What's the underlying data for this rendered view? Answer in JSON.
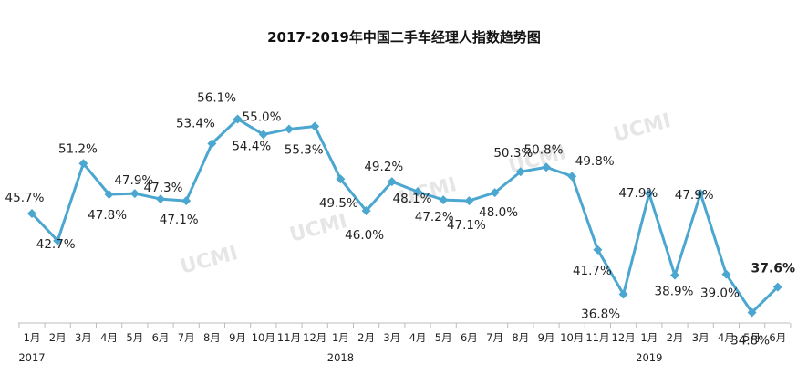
{
  "chart_data": {
    "type": "line",
    "title": "2017-2019年中国二手车经理人指数趋势图",
    "watermark": "UCMI",
    "line_color": "#4BA6D0",
    "categories": [
      "1月",
      "2月",
      "3月",
      "4月",
      "5月",
      "6月",
      "7月",
      "8月",
      "9月",
      "10月",
      "11月",
      "12月",
      "1月",
      "2月",
      "3月",
      "4月",
      "5月",
      "6月",
      "7月",
      "8月",
      "9月",
      "10月",
      "11月",
      "12月",
      "1月",
      "2月",
      "3月",
      "4月",
      "5月",
      "6月"
    ],
    "years": [
      {
        "label": "2017",
        "start_index": 0
      },
      {
        "label": "2018",
        "start_index": 12
      },
      {
        "label": "2019",
        "start_index": 24
      }
    ],
    "values": [
      45.7,
      42.7,
      51.2,
      47.8,
      47.9,
      47.3,
      47.1,
      53.4,
      56.1,
      54.4,
      55.0,
      55.3,
      49.5,
      46.0,
      49.2,
      48.1,
      47.2,
      47.1,
      48.0,
      50.3,
      50.8,
      49.8,
      41.7,
      36.8,
      47.9,
      38.9,
      47.9,
      39.0,
      34.8,
      37.6
    ],
    "labels": [
      "45.7%",
      "42.7%",
      "51.2%",
      "47.8%",
      "47.9%",
      "47.3%",
      "47.1%",
      "53.4%",
      "56.1%",
      "54.4%",
      "55.0%",
      "55.3%",
      "49.5%",
      "46.0%",
      "49.2%",
      "48.1%",
      "47.2%",
      "47.1%",
      "48.0%",
      "50.3%",
      "50.8%",
      "49.8%",
      "41.7%",
      "36.8%",
      "47.9%",
      "38.9%",
      "47.9%",
      "39.0%",
      "34.8%",
      "37.6%"
    ],
    "ylim": [
      30,
      62
    ],
    "grid": false,
    "legend": "none"
  }
}
